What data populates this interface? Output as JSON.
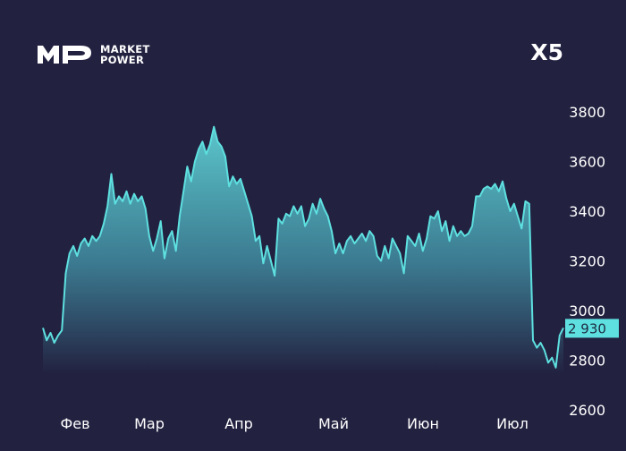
{
  "logo": {
    "line1": "MARKET",
    "line2": "POWER",
    "mark_text": "MP"
  },
  "ticker": "X5",
  "colors": {
    "background": "#222140",
    "line": "#5ee0e0",
    "area_top": "#5bc6cb",
    "area_bottom": "#222140",
    "label_box": "#5ee0e0",
    "text": "#ffffff"
  },
  "chart_data": {
    "type": "area",
    "ylim": [
      2600,
      3900
    ],
    "yticks": [
      "3800",
      "3600",
      "3400",
      "3200",
      "3000",
      "2800",
      "2600"
    ],
    "ytick_values": [
      3800,
      3600,
      3400,
      3200,
      3000,
      2800,
      2600
    ],
    "xticks": [
      "Фев",
      "Мар",
      "Апр",
      "Май",
      "Июн",
      "Июл"
    ],
    "last_value_label": "2 930",
    "last_value": 2930,
    "values": [
      2930,
      2880,
      2910,
      2870,
      2900,
      2920,
      3150,
      3230,
      3260,
      3220,
      3270,
      3290,
      3260,
      3300,
      3280,
      3300,
      3350,
      3420,
      3550,
      3430,
      3460,
      3440,
      3480,
      3430,
      3470,
      3440,
      3460,
      3410,
      3300,
      3240,
      3290,
      3360,
      3210,
      3290,
      3320,
      3240,
      3380,
      3480,
      3580,
      3520,
      3600,
      3650,
      3680,
      3630,
      3670,
      3740,
      3680,
      3660,
      3620,
      3500,
      3540,
      3510,
      3530,
      3480,
      3430,
      3380,
      3280,
      3300,
      3190,
      3260,
      3200,
      3140,
      3370,
      3350,
      3390,
      3380,
      3420,
      3390,
      3420,
      3340,
      3370,
      3430,
      3390,
      3450,
      3410,
      3380,
      3320,
      3230,
      3270,
      3230,
      3280,
      3300,
      3270,
      3290,
      3310,
      3280,
      3320,
      3300,
      3220,
      3200,
      3260,
      3210,
      3290,
      3260,
      3230,
      3150,
      3300,
      3280,
      3260,
      3310,
      3240,
      3290,
      3380,
      3370,
      3400,
      3320,
      3360,
      3280,
      3340,
      3300,
      3320,
      3300,
      3310,
      3340,
      3460,
      3460,
      3490,
      3500,
      3490,
      3510,
      3480,
      3520,
      3450,
      3400,
      3430,
      3380,
      3330,
      3440,
      3430,
      2880,
      2850,
      2870,
      2840,
      2790,
      2810,
      2770,
      2900,
      2930
    ]
  }
}
